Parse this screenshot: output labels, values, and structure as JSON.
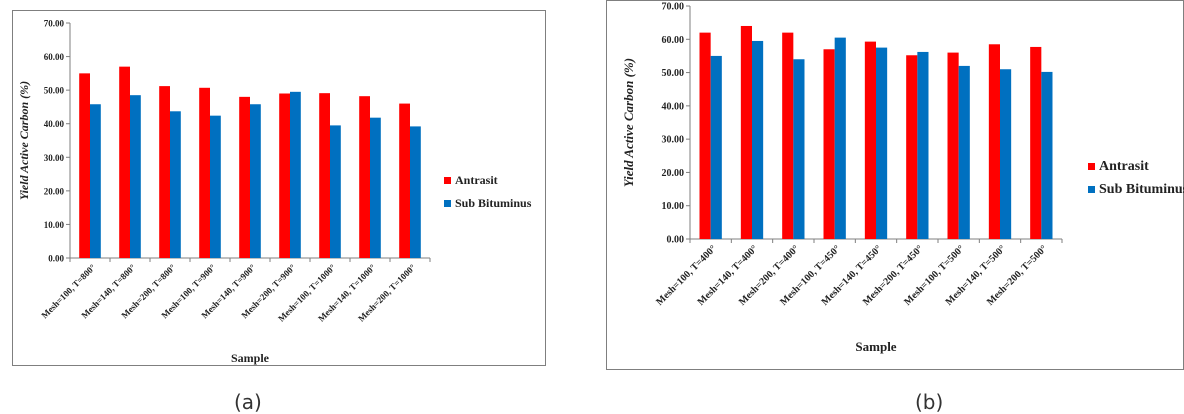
{
  "chart_data": [
    {
      "id": "a",
      "type": "bar",
      "title": "",
      "xlabel": "Sample",
      "ylabel": "Yield Active Carbon (%)",
      "ylim": [
        0,
        70
      ],
      "yticks": [
        "0.00",
        "10.00",
        "20.00",
        "30.00",
        "40.00",
        "50.00",
        "60.00",
        "70.00"
      ],
      "grid": false,
      "legend_position": "right",
      "categories": [
        "Mesh=100, T=800°",
        "Mesh=140, T=800°",
        "Mesh=200, T=800°",
        "Mesh=100, T=900°",
        "Mesh=140, T=900°",
        "Mesh=200, T=900°",
        "Mesh=100, T=1000°",
        "Mesh=140, T=1000°",
        "Mesh=200, T=1000°"
      ],
      "series": [
        {
          "name": "Antrasit",
          "color": "#ff0000",
          "values": [
            55.0,
            57.0,
            51.2,
            50.7,
            48.0,
            49.0,
            49.1,
            48.2,
            46.0
          ]
        },
        {
          "name": "Sub Bituminus",
          "color": "#0070c0",
          "values": [
            45.8,
            48.5,
            43.7,
            42.4,
            45.8,
            49.5,
            39.5,
            41.8,
            39.2
          ]
        }
      ]
    },
    {
      "id": "b",
      "type": "bar",
      "title": "",
      "xlabel": "Sample",
      "ylabel": "Yield Active Carbon (%)",
      "ylim": [
        0,
        70
      ],
      "yticks": [
        "0.00",
        "10.00",
        "20.00",
        "30.00",
        "40.00",
        "50.00",
        "60.00",
        "70.00"
      ],
      "grid": false,
      "legend_position": "right",
      "categories": [
        "Mesh=100, T=400°",
        "Mesh=140, T=400°",
        "Mesh=200, T=400°",
        "Mesh=100, T=450°",
        "Mesh=140, T=450°",
        "Mesh=200, T=450°",
        "Mesh=100, T=500°",
        "Mesh=140, T=500°",
        "Mesh=200, T=500°"
      ],
      "series": [
        {
          "name": "Antrasit",
          "color": "#ff0000",
          "values": [
            62.0,
            64.0,
            62.0,
            57.0,
            59.3,
            55.2,
            56.0,
            58.5,
            57.7
          ]
        },
        {
          "name": "Sub Bituminus",
          "color": "#0070c0",
          "values": [
            55.0,
            59.5,
            54.0,
            60.5,
            57.5,
            56.2,
            52.0,
            51.0,
            50.2
          ]
        }
      ]
    }
  ],
  "captions": {
    "a": "(a)",
    "b": "(b)"
  }
}
